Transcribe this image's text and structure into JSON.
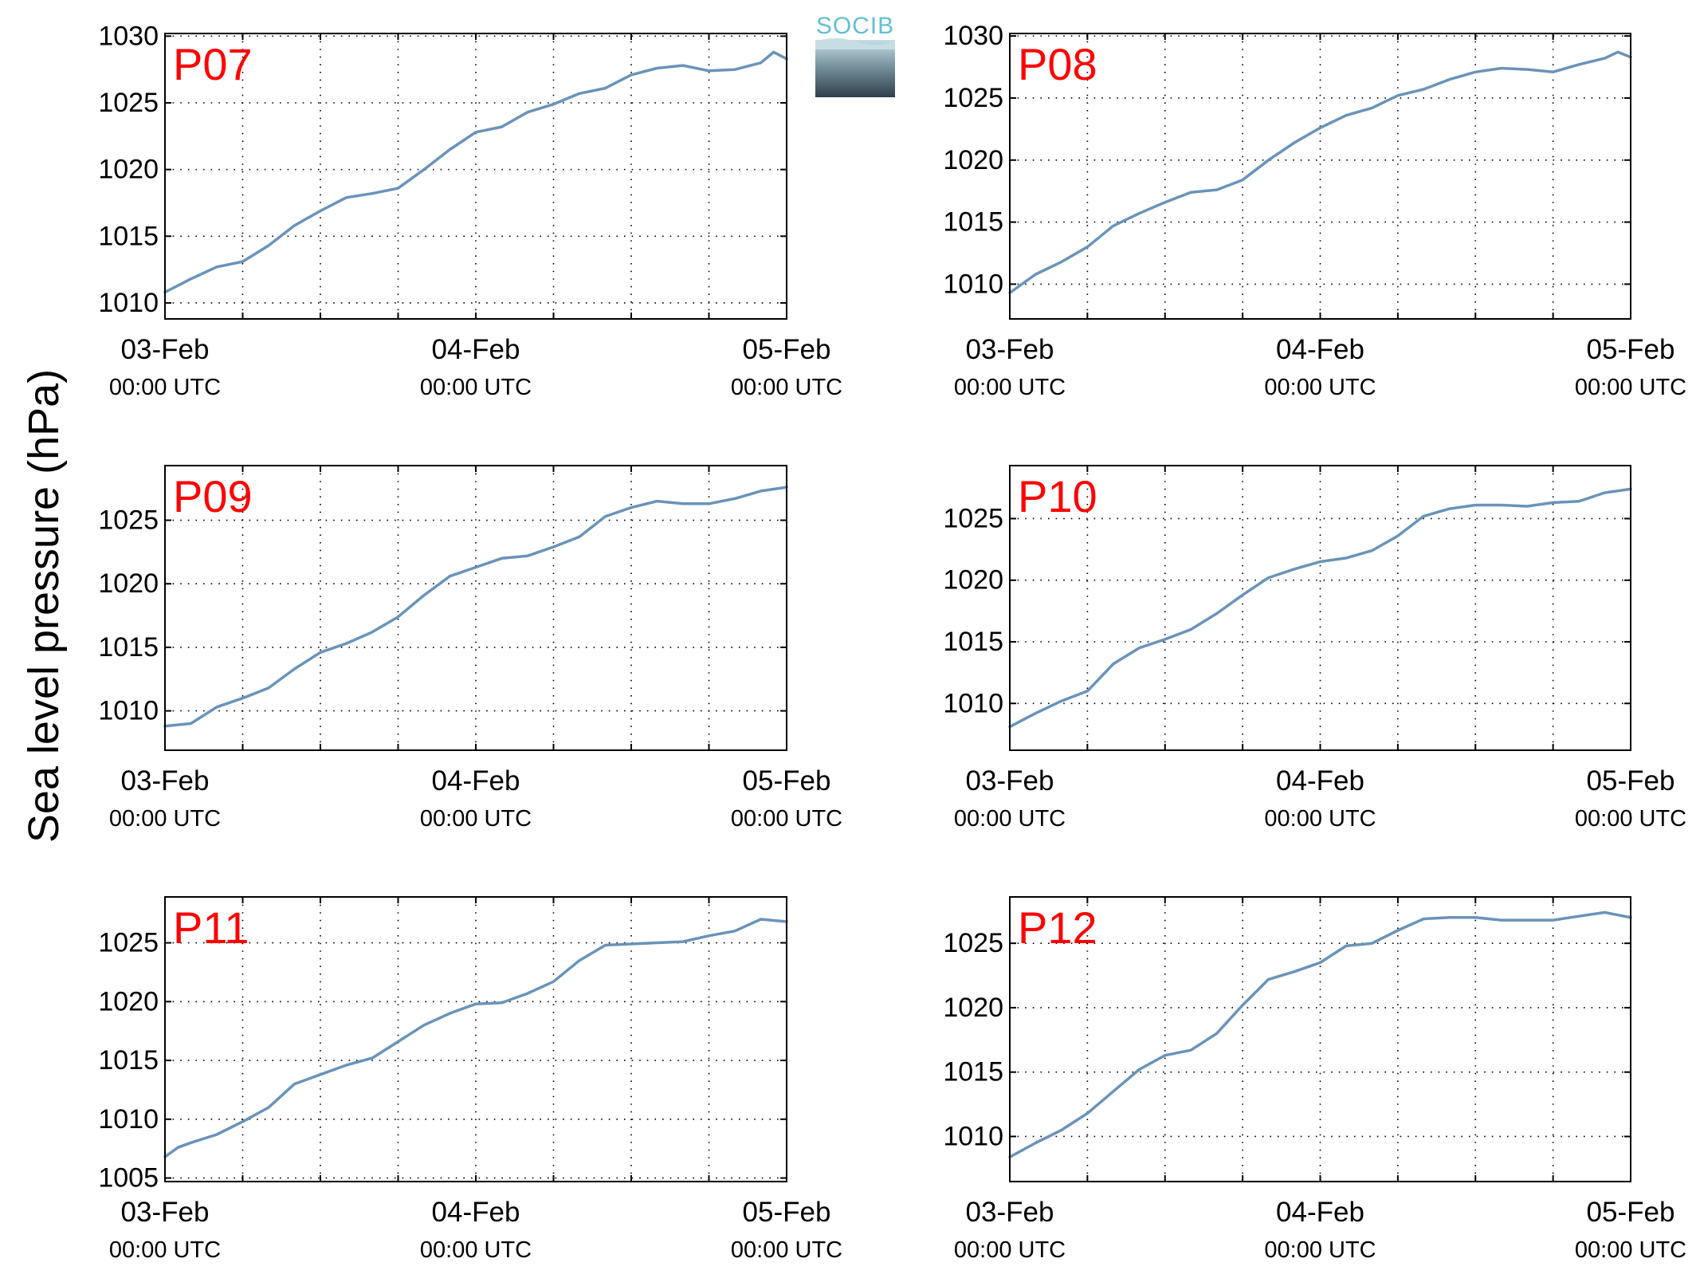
{
  "figure": {
    "ylabel": "Sea level pressure (hPa)",
    "logo_text": "SOCIB",
    "series_color": "#6a93b8",
    "label_color": "#ff0000"
  },
  "chart_data": [
    {
      "type": "line",
      "panel_label": "P07",
      "x_ticks": [
        {
          "t": 0,
          "date": "03-Feb",
          "time": "00:00 UTC"
        },
        {
          "t": 24,
          "date": "04-Feb",
          "time": "00:00 UTC"
        },
        {
          "t": 48,
          "date": "05-Feb",
          "time": "00:00 UTC"
        }
      ],
      "x_range_hours": [
        0,
        48
      ],
      "ylim": [
        1008.8,
        1030.2
      ],
      "yticks": [
        1010,
        1015,
        1020,
        1025,
        1030
      ],
      "grid": true,
      "x": [
        0,
        2,
        4,
        6,
        8,
        10,
        12,
        14,
        16,
        18,
        20,
        22,
        24,
        26,
        28,
        30,
        32,
        34,
        36,
        38,
        40,
        42,
        44,
        46,
        47,
        48
      ],
      "y": [
        1010.8,
        1011.8,
        1012.7,
        1013.1,
        1014.3,
        1015.8,
        1016.9,
        1017.9,
        1018.2,
        1018.6,
        1020.0,
        1021.5,
        1022.8,
        1023.2,
        1024.3,
        1024.9,
        1025.7,
        1026.1,
        1027.1,
        1027.6,
        1027.8,
        1027.4,
        1027.5,
        1028.0,
        1028.8,
        1028.3
      ]
    },
    {
      "type": "line",
      "panel_label": "P08",
      "x_ticks": [
        {
          "t": 0,
          "date": "03-Feb",
          "time": "00:00 UTC"
        },
        {
          "t": 24,
          "date": "04-Feb",
          "time": "00:00 UTC"
        },
        {
          "t": 48,
          "date": "05-Feb",
          "time": "00:00 UTC"
        }
      ],
      "x_range_hours": [
        0,
        48
      ],
      "ylim": [
        1007.2,
        1030.2
      ],
      "yticks": [
        1010,
        1015,
        1020,
        1025,
        1030
      ],
      "grid": true,
      "x": [
        0,
        2,
        4,
        6,
        8,
        10,
        12,
        14,
        16,
        18,
        20,
        22,
        24,
        26,
        28,
        30,
        32,
        34,
        36,
        38,
        40,
        42,
        44,
        46,
        47,
        48
      ],
      "y": [
        1009.3,
        1010.8,
        1011.8,
        1013.0,
        1014.7,
        1015.7,
        1016.6,
        1017.4,
        1017.6,
        1018.4,
        1020.0,
        1021.4,
        1022.6,
        1023.6,
        1024.2,
        1025.2,
        1025.7,
        1026.5,
        1027.1,
        1027.4,
        1027.3,
        1027.1,
        1027.7,
        1028.2,
        1028.7,
        1028.3
      ]
    },
    {
      "type": "line",
      "panel_label": "P09",
      "x_ticks": [
        {
          "t": 0,
          "date": "03-Feb",
          "time": "00:00 UTC"
        },
        {
          "t": 24,
          "date": "04-Feb",
          "time": "00:00 UTC"
        },
        {
          "t": 48,
          "date": "05-Feb",
          "time": "00:00 UTC"
        }
      ],
      "x_range_hours": [
        0,
        48
      ],
      "ylim": [
        1006.9,
        1029.3
      ],
      "yticks": [
        1010,
        1015,
        1020,
        1025
      ],
      "grid": true,
      "x": [
        0,
        1,
        2,
        4,
        6,
        8,
        10,
        12,
        14,
        16,
        18,
        20,
        22,
        24,
        26,
        28,
        30,
        32,
        34,
        36,
        38,
        40,
        42,
        44,
        46,
        48
      ],
      "y": [
        1008.8,
        1008.9,
        1009.0,
        1010.3,
        1011.0,
        1011.8,
        1013.3,
        1014.6,
        1015.3,
        1016.2,
        1017.4,
        1019.1,
        1020.6,
        1021.3,
        1022.0,
        1022.2,
        1022.9,
        1023.7,
        1025.3,
        1026.0,
        1026.5,
        1026.3,
        1026.3,
        1026.7,
        1027.3,
        1027.6
      ]
    },
    {
      "type": "line",
      "panel_label": "P10",
      "x_ticks": [
        {
          "t": 0,
          "date": "03-Feb",
          "time": "00:00 UTC"
        },
        {
          "t": 24,
          "date": "04-Feb",
          "time": "00:00 UTC"
        },
        {
          "t": 48,
          "date": "05-Feb",
          "time": "00:00 UTC"
        }
      ],
      "x_range_hours": [
        0,
        48
      ],
      "ylim": [
        1006.2,
        1029.3
      ],
      "yticks": [
        1010,
        1015,
        1020,
        1025
      ],
      "grid": true,
      "x": [
        0,
        2,
        4,
        6,
        8,
        10,
        12,
        14,
        16,
        18,
        20,
        22,
        24,
        26,
        28,
        30,
        32,
        34,
        36,
        38,
        40,
        42,
        44,
        46,
        48
      ],
      "y": [
        1008.1,
        1009.2,
        1010.2,
        1011.0,
        1013.2,
        1014.5,
        1015.2,
        1016.0,
        1017.3,
        1018.8,
        1020.2,
        1020.9,
        1021.5,
        1021.8,
        1022.4,
        1023.6,
        1025.2,
        1025.8,
        1026.1,
        1026.1,
        1026.0,
        1026.3,
        1026.4,
        1027.1,
        1027.4
      ]
    },
    {
      "type": "line",
      "panel_label": "P11",
      "x_ticks": [
        {
          "t": 0,
          "date": "03-Feb",
          "time": "00:00 UTC"
        },
        {
          "t": 24,
          "date": "04-Feb",
          "time": "00:00 UTC"
        },
        {
          "t": 48,
          "date": "05-Feb",
          "time": "00:00 UTC"
        }
      ],
      "x_range_hours": [
        0,
        48
      ],
      "ylim": [
        1004.7,
        1028.9
      ],
      "yticks": [
        1005,
        1010,
        1015,
        1020,
        1025
      ],
      "grid": true,
      "x": [
        0,
        1,
        2,
        4,
        6,
        8,
        10,
        12,
        14,
        16,
        18,
        20,
        22,
        24,
        26,
        28,
        30,
        32,
        34,
        36,
        38,
        40,
        42,
        44,
        46,
        47,
        48
      ],
      "y": [
        1006.8,
        1007.6,
        1008.0,
        1008.7,
        1009.8,
        1011.0,
        1013.0,
        1013.8,
        1014.6,
        1015.2,
        1016.6,
        1018.0,
        1019.0,
        1019.8,
        1019.9,
        1020.7,
        1021.7,
        1023.5,
        1024.8,
        1024.9,
        1025.0,
        1025.1,
        1025.6,
        1026.0,
        1027.0,
        1026.9,
        1026.8
      ]
    },
    {
      "type": "line",
      "panel_label": "P12",
      "x_ticks": [
        {
          "t": 0,
          "date": "03-Feb",
          "time": "00:00 UTC"
        },
        {
          "t": 24,
          "date": "04-Feb",
          "time": "00:00 UTC"
        },
        {
          "t": 48,
          "date": "05-Feb",
          "time": "00:00 UTC"
        }
      ],
      "x_range_hours": [
        0,
        48
      ],
      "ylim": [
        1006.5,
        1028.6
      ],
      "yticks": [
        1010,
        1015,
        1020,
        1025
      ],
      "grid": true,
      "x": [
        0,
        2,
        4,
        6,
        8,
        10,
        12,
        14,
        16,
        18,
        20,
        22,
        24,
        26,
        28,
        30,
        32,
        34,
        36,
        38,
        40,
        42,
        44,
        46,
        48
      ],
      "y": [
        1008.4,
        1009.5,
        1010.5,
        1011.8,
        1013.5,
        1015.2,
        1016.3,
        1016.7,
        1018.0,
        1020.2,
        1022.2,
        1022.8,
        1023.5,
        1024.8,
        1025.0,
        1026.0,
        1026.9,
        1027.0,
        1027.0,
        1026.8,
        1026.8,
        1026.8,
        1027.1,
        1027.4,
        1027.0
      ]
    }
  ]
}
